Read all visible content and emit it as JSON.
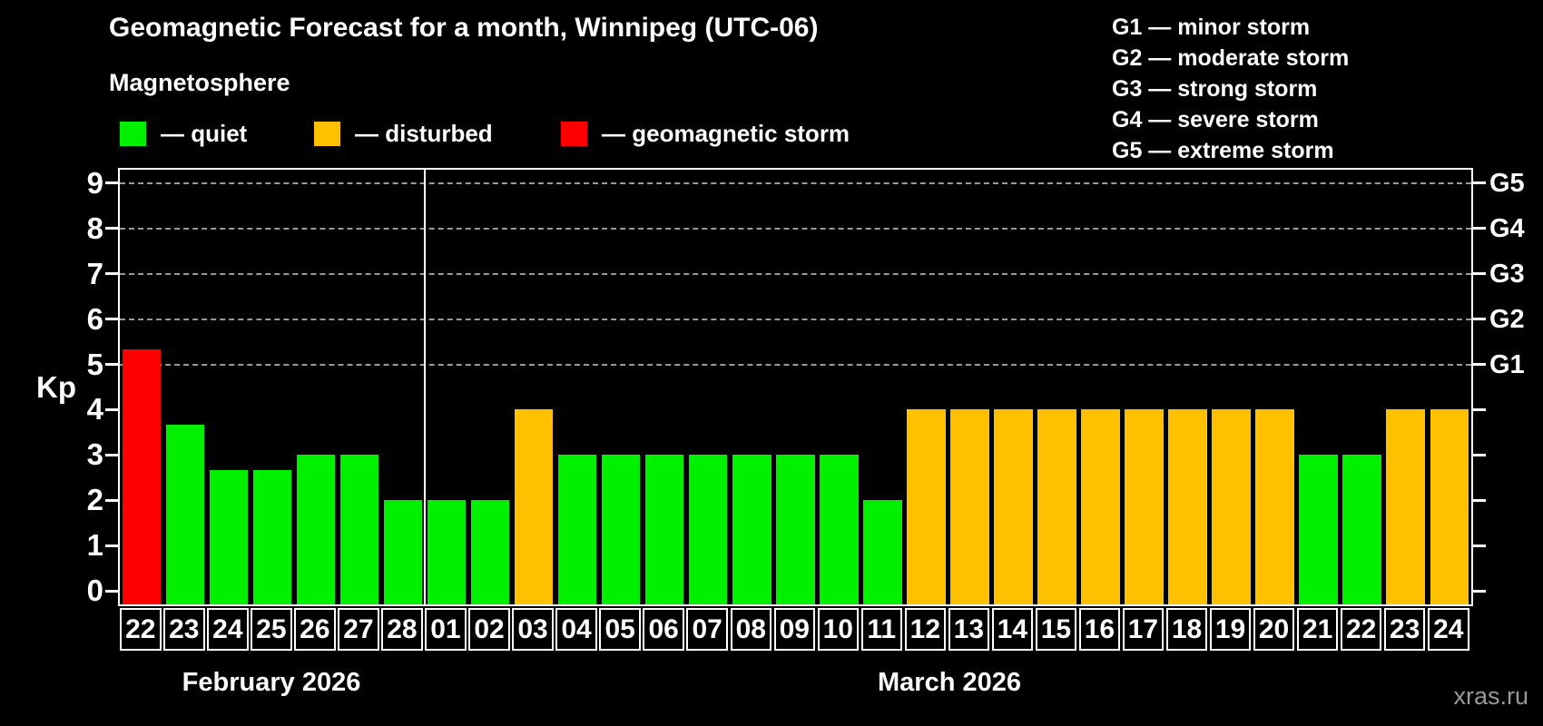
{
  "title": "Geomagnetic Forecast for a month, Winnipeg (UTC-06)",
  "subtitle": "Magnetosphere",
  "watermark": "xras.ru",
  "legend": {
    "items": [
      {
        "name": "quiet",
        "label": "— quiet",
        "color": "#00f000"
      },
      {
        "name": "disturbed",
        "label": "— disturbed",
        "color": "#ffc000"
      },
      {
        "name": "storm",
        "label": "— geomagnetic storm",
        "color": "#ff0000"
      }
    ]
  },
  "g_legend": [
    "G1 — minor storm",
    "G2 — moderate storm",
    "G3 — strong storm",
    "G4 — severe storm",
    "G5 — extreme storm"
  ],
  "chart_data": {
    "type": "bar",
    "ylabel": "Kp",
    "ylim": [
      0,
      9.3
    ],
    "yticks": [
      0,
      1,
      2,
      3,
      4,
      5,
      6,
      7,
      8,
      9
    ],
    "grid": "dashed horizontal lines at Kp 5-9 only",
    "grid_levels": [
      {
        "kp": 5,
        "label": "G1"
      },
      {
        "kp": 6,
        "label": "G2"
      },
      {
        "kp": 7,
        "label": "G3"
      },
      {
        "kp": 8,
        "label": "G4"
      },
      {
        "kp": 9,
        "label": "G5"
      }
    ],
    "status_colors": {
      "quiet": "#00f000",
      "disturbed": "#ffc000",
      "storm": "#ff0000"
    },
    "months": [
      {
        "label": "February 2026",
        "days": [
          {
            "day": "22",
            "kp": 5.33,
            "status": "storm"
          },
          {
            "day": "23",
            "kp": 3.67,
            "status": "quiet"
          },
          {
            "day": "24",
            "kp": 2.67,
            "status": "quiet"
          },
          {
            "day": "25",
            "kp": 2.67,
            "status": "quiet"
          },
          {
            "day": "26",
            "kp": 3,
            "status": "quiet"
          },
          {
            "day": "27",
            "kp": 3,
            "status": "quiet"
          },
          {
            "day": "28",
            "kp": 2,
            "status": "quiet"
          }
        ]
      },
      {
        "label": "March 2026",
        "days": [
          {
            "day": "01",
            "kp": 2,
            "status": "quiet"
          },
          {
            "day": "02",
            "kp": 2,
            "status": "quiet"
          },
          {
            "day": "03",
            "kp": 4,
            "status": "disturbed"
          },
          {
            "day": "04",
            "kp": 3,
            "status": "quiet"
          },
          {
            "day": "05",
            "kp": 3,
            "status": "quiet"
          },
          {
            "day": "06",
            "kp": 3,
            "status": "quiet"
          },
          {
            "day": "07",
            "kp": 3,
            "status": "quiet"
          },
          {
            "day": "08",
            "kp": 3,
            "status": "quiet"
          },
          {
            "day": "09",
            "kp": 3,
            "status": "quiet"
          },
          {
            "day": "10",
            "kp": 3,
            "status": "quiet"
          },
          {
            "day": "11",
            "kp": 2,
            "status": "quiet"
          },
          {
            "day": "12",
            "kp": 4,
            "status": "disturbed"
          },
          {
            "day": "13",
            "kp": 4,
            "status": "disturbed"
          },
          {
            "day": "14",
            "kp": 4,
            "status": "disturbed"
          },
          {
            "day": "15",
            "kp": 4,
            "status": "disturbed"
          },
          {
            "day": "16",
            "kp": 4,
            "status": "disturbed"
          },
          {
            "day": "17",
            "kp": 4,
            "status": "disturbed"
          },
          {
            "day": "18",
            "kp": 4,
            "status": "disturbed"
          },
          {
            "day": "19",
            "kp": 4,
            "status": "disturbed"
          },
          {
            "day": "20",
            "kp": 4,
            "status": "disturbed"
          },
          {
            "day": "21",
            "kp": 3,
            "status": "quiet"
          },
          {
            "day": "22",
            "kp": 3,
            "status": "quiet"
          },
          {
            "day": "23",
            "kp": 4,
            "status": "disturbed"
          },
          {
            "day": "24",
            "kp": 4,
            "status": "disturbed"
          }
        ]
      }
    ]
  }
}
